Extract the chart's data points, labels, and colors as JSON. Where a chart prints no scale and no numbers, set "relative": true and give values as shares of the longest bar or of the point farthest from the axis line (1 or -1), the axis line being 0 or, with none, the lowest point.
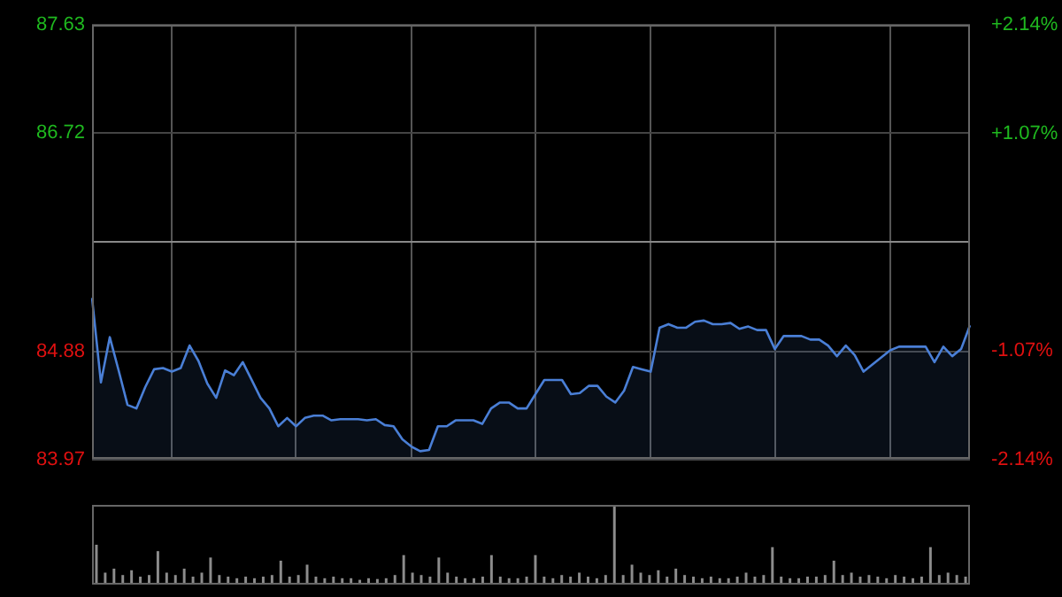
{
  "chart_data": [
    {
      "type": "area",
      "categories": [
        null,
        null,
        null,
        null,
        null,
        null,
        null,
        null,
        null,
        null,
        null,
        null,
        null,
        null,
        null,
        null,
        null,
        null,
        null,
        null,
        null,
        null,
        null,
        null,
        null,
        null,
        null,
        null,
        null,
        null,
        null,
        null,
        null,
        null,
        null,
        null,
        null,
        null,
        null,
        null,
        null,
        null,
        null,
        null,
        null,
        null,
        null,
        null,
        null,
        null,
        null,
        null,
        null,
        null,
        null,
        null,
        null,
        null,
        null,
        null,
        null,
        null,
        null,
        null,
        null,
        null,
        null,
        null,
        null,
        null,
        null,
        null,
        null,
        null,
        null,
        null,
        null,
        null,
        null,
        null,
        null,
        null,
        null,
        null,
        null,
        null,
        null,
        null,
        null,
        null,
        null,
        null,
        null,
        null,
        null,
        null,
        null,
        null,
        null,
        null
      ],
      "values": [
        85.33,
        84.62,
        85.0,
        84.72,
        84.43,
        84.4,
        84.58,
        84.73,
        84.74,
        84.71,
        84.74,
        84.93,
        84.8,
        84.61,
        84.49,
        84.72,
        84.68,
        84.79,
        84.64,
        84.49,
        84.4,
        84.25,
        84.32,
        84.25,
        84.32,
        84.34,
        84.34,
        84.3,
        84.31,
        84.31,
        84.31,
        84.3,
        84.31,
        84.26,
        84.25,
        84.14,
        84.08,
        84.04,
        84.05,
        84.25,
        84.25,
        84.3,
        84.3,
        84.3,
        84.27,
        84.4,
        84.45,
        84.45,
        84.4,
        84.4,
        84.52,
        84.64,
        84.64,
        84.64,
        84.52,
        84.53,
        84.59,
        84.59,
        84.5,
        84.45,
        84.55,
        84.75,
        84.73,
        84.71,
        85.08,
        85.11,
        85.08,
        85.08,
        85.13,
        85.14,
        85.11,
        85.11,
        85.12,
        85.07,
        85.09,
        85.06,
        85.06,
        84.9,
        85.01,
        85.01,
        85.01,
        84.98,
        84.98,
        84.93,
        84.84,
        84.93,
        84.85,
        84.71,
        84.77,
        84.83,
        84.89,
        84.92,
        84.92,
        84.92,
        84.92,
        84.79,
        84.92,
        84.84,
        84.9,
        85.1
      ],
      "color": "#4a7fd6",
      "ylim": [
        83.97,
        87.63
      ],
      "yticks": [
        83.97,
        84.88,
        {
          "value": 85.8,
          "label": null
        },
        86.72,
        87.63
      ],
      "y2lim": [
        -2.14,
        2.14
      ],
      "y2ticks": [
        {
          "value": -2.14,
          "label": "-2.14%"
        },
        {
          "value": -1.07,
          "label": "-1.07%"
        },
        {
          "value": 0,
          "label": null
        },
        {
          "value": 1.07,
          "label": "+1.07%"
        },
        {
          "value": 2.14,
          "label": "+2.14%"
        }
      ],
      "grid": true,
      "tick_labels": "y"
    },
    {
      "type": "bar",
      "relative": true,
      "tick_labels": false,
      "color": "#8c8c8c",
      "categories": [
        null,
        null,
        null,
        null,
        null,
        null,
        null,
        null,
        null,
        null,
        null,
        null,
        null,
        null,
        null,
        null,
        null,
        null,
        null,
        null,
        null,
        null,
        null,
        null,
        null,
        null,
        null,
        null,
        null,
        null,
        null,
        null,
        null,
        null,
        null,
        null,
        null,
        null,
        null,
        null,
        null,
        null,
        null,
        null,
        null,
        null,
        null,
        null,
        null,
        null,
        null,
        null,
        null,
        null,
        null,
        null,
        null,
        null,
        null,
        null,
        null,
        null,
        null,
        null,
        null,
        null,
        null,
        null,
        null,
        null,
        null,
        null,
        null,
        null,
        null,
        null,
        null,
        null,
        null,
        null,
        null,
        null,
        null,
        null,
        null,
        null,
        null,
        null,
        null,
        null,
        null,
        null,
        null,
        null,
        null,
        null,
        null,
        null,
        null,
        null
      ],
      "values": [
        0.5,
        0.15,
        0.2,
        0.12,
        0.18,
        0.1,
        0.12,
        0.42,
        0.15,
        0.12,
        0.2,
        0.1,
        0.15,
        0.34,
        0.12,
        0.1,
        0.08,
        0.1,
        0.08,
        0.1,
        0.12,
        0.3,
        0.1,
        0.12,
        0.25,
        0.1,
        0.08,
        0.1,
        0.08,
        0.08,
        0.06,
        0.08,
        0.07,
        0.08,
        0.12,
        0.37,
        0.15,
        0.12,
        0.1,
        0.34,
        0.15,
        0.1,
        0.08,
        0.08,
        0.1,
        0.37,
        0.1,
        0.08,
        0.08,
        0.1,
        0.37,
        0.1,
        0.08,
        0.12,
        0.1,
        0.15,
        0.1,
        0.08,
        0.12,
        1,
        0.12,
        0.25,
        0.15,
        0.12,
        0.18,
        0.1,
        0.2,
        0.12,
        0.1,
        0.08,
        0.1,
        0.08,
        0.08,
        0.1,
        0.15,
        0.1,
        0.12,
        0.47,
        0.1,
        0.08,
        0.08,
        0.1,
        0.1,
        0.12,
        0.3,
        0.12,
        0.15,
        0.1,
        0.12,
        0.1,
        0.08,
        0.12,
        0.1,
        0.08,
        0.1,
        0.47,
        0.12,
        0.15,
        0.12,
        0.1
      ]
    }
  ]
}
